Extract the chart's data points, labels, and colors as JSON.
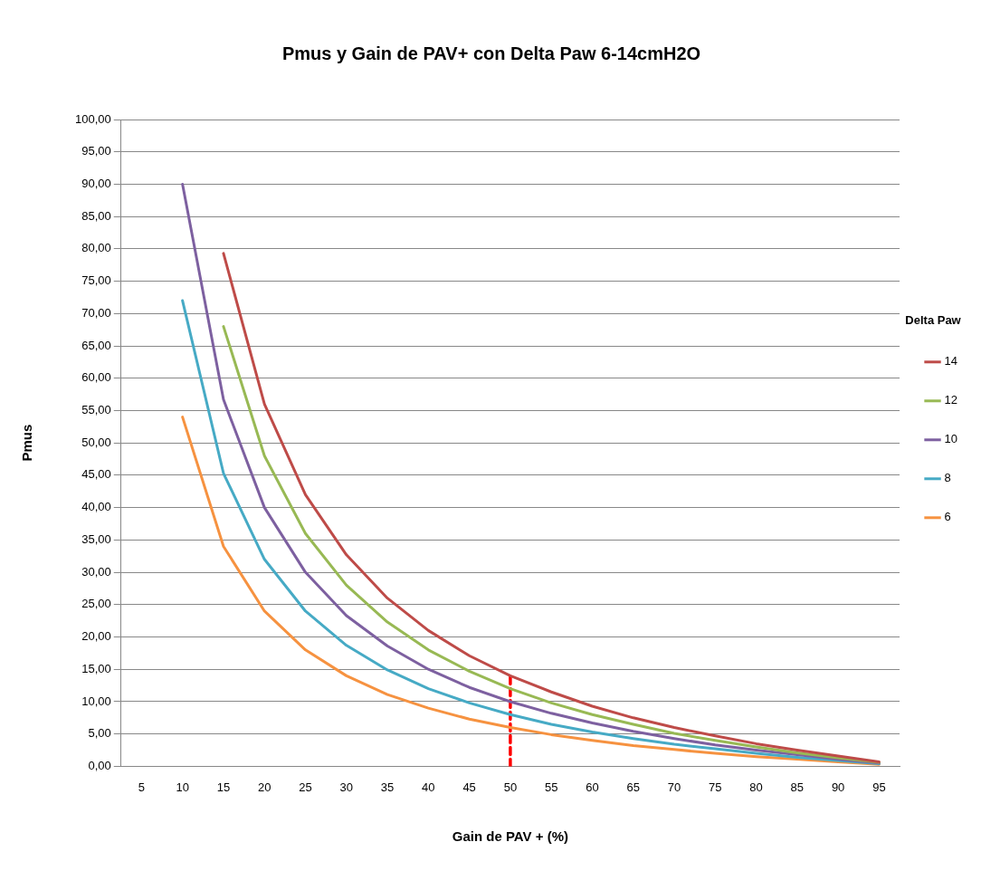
{
  "chart_data": {
    "type": "line",
    "title": "Pmus y Gain de PAV+ con Delta Paw 6-14cmH2O",
    "xlabel": "Gain de PAV + (%)",
    "ylabel": "Pmus",
    "legend_title": "Delta Paw",
    "legend": "right",
    "grid": "y",
    "marker": "none",
    "line_style": "solid",
    "categories": [
      "5",
      "10",
      "15",
      "20",
      "25",
      "30",
      "35",
      "40",
      "45",
      "50",
      "55",
      "60",
      "65",
      "70",
      "75",
      "80",
      "85",
      "90",
      "95"
    ],
    "ylim": [
      0,
      100
    ],
    "yticks": [
      {
        "value": 0,
        "label": "0,00"
      },
      {
        "value": 5,
        "label": "5,00"
      },
      {
        "value": 10,
        "label": "10,00"
      },
      {
        "value": 15,
        "label": "15,00"
      },
      {
        "value": 20,
        "label": "20,00"
      },
      {
        "value": 25,
        "label": "25,00"
      },
      {
        "value": 30,
        "label": "30,00"
      },
      {
        "value": 35,
        "label": "35,00"
      },
      {
        "value": 40,
        "label": "40,00"
      },
      {
        "value": 45,
        "label": "45,00"
      },
      {
        "value": 50,
        "label": "50,00"
      },
      {
        "value": 55,
        "label": "55,00"
      },
      {
        "value": 60,
        "label": "60,00"
      },
      {
        "value": 65,
        "label": "65,00"
      },
      {
        "value": 70,
        "label": "70,00"
      },
      {
        "value": 75,
        "label": "75,00"
      },
      {
        "value": 80,
        "label": "80,00"
      },
      {
        "value": 85,
        "label": "85,00"
      },
      {
        "value": 90,
        "label": "90,00"
      },
      {
        "value": 95,
        "label": "95,00"
      },
      {
        "value": 100,
        "label": "100,00"
      }
    ],
    "series": [
      {
        "name": "14",
        "color": "#be4b48",
        "values": [
          null,
          null,
          79.3,
          56,
          42,
          32.7,
          26,
          21,
          17.1,
          14,
          11.5,
          9.3,
          7.5,
          6,
          4.7,
          3.5,
          2.5,
          1.6,
          0.7
        ]
      },
      {
        "name": "12",
        "color": "#98b954",
        "values": [
          null,
          null,
          68,
          48,
          36,
          28,
          22.3,
          18,
          14.7,
          12,
          9.8,
          8,
          6.5,
          5.1,
          4,
          3,
          2.1,
          1.3,
          0.6
        ]
      },
      {
        "name": "10",
        "color": "#7d60a0",
        "values": [
          null,
          90,
          56.7,
          40,
          30,
          23.3,
          18.6,
          15,
          12.2,
          10,
          8.2,
          6.7,
          5.4,
          4.3,
          3.3,
          2.5,
          1.8,
          1.1,
          0.5
        ]
      },
      {
        "name": "8",
        "color": "#46aac5",
        "values": [
          null,
          72,
          45.3,
          32,
          24,
          18.7,
          14.9,
          12,
          9.8,
          8,
          6.5,
          5.3,
          4.3,
          3.4,
          2.7,
          2,
          1.4,
          0.9,
          0.4
        ]
      },
      {
        "name": "6",
        "color": "#f69240",
        "values": [
          null,
          54,
          34,
          24,
          18,
          14,
          11.1,
          9,
          7.3,
          6,
          4.9,
          4,
          3.2,
          2.6,
          2,
          1.5,
          1.1,
          0.7,
          0.3
        ]
      },
      {
        "type": "line",
        "color": "#ff0000",
        "line_style": "dashed",
        "x": [
          "50",
          "50"
        ],
        "values": [
          0,
          14
        ]
      }
    ]
  }
}
